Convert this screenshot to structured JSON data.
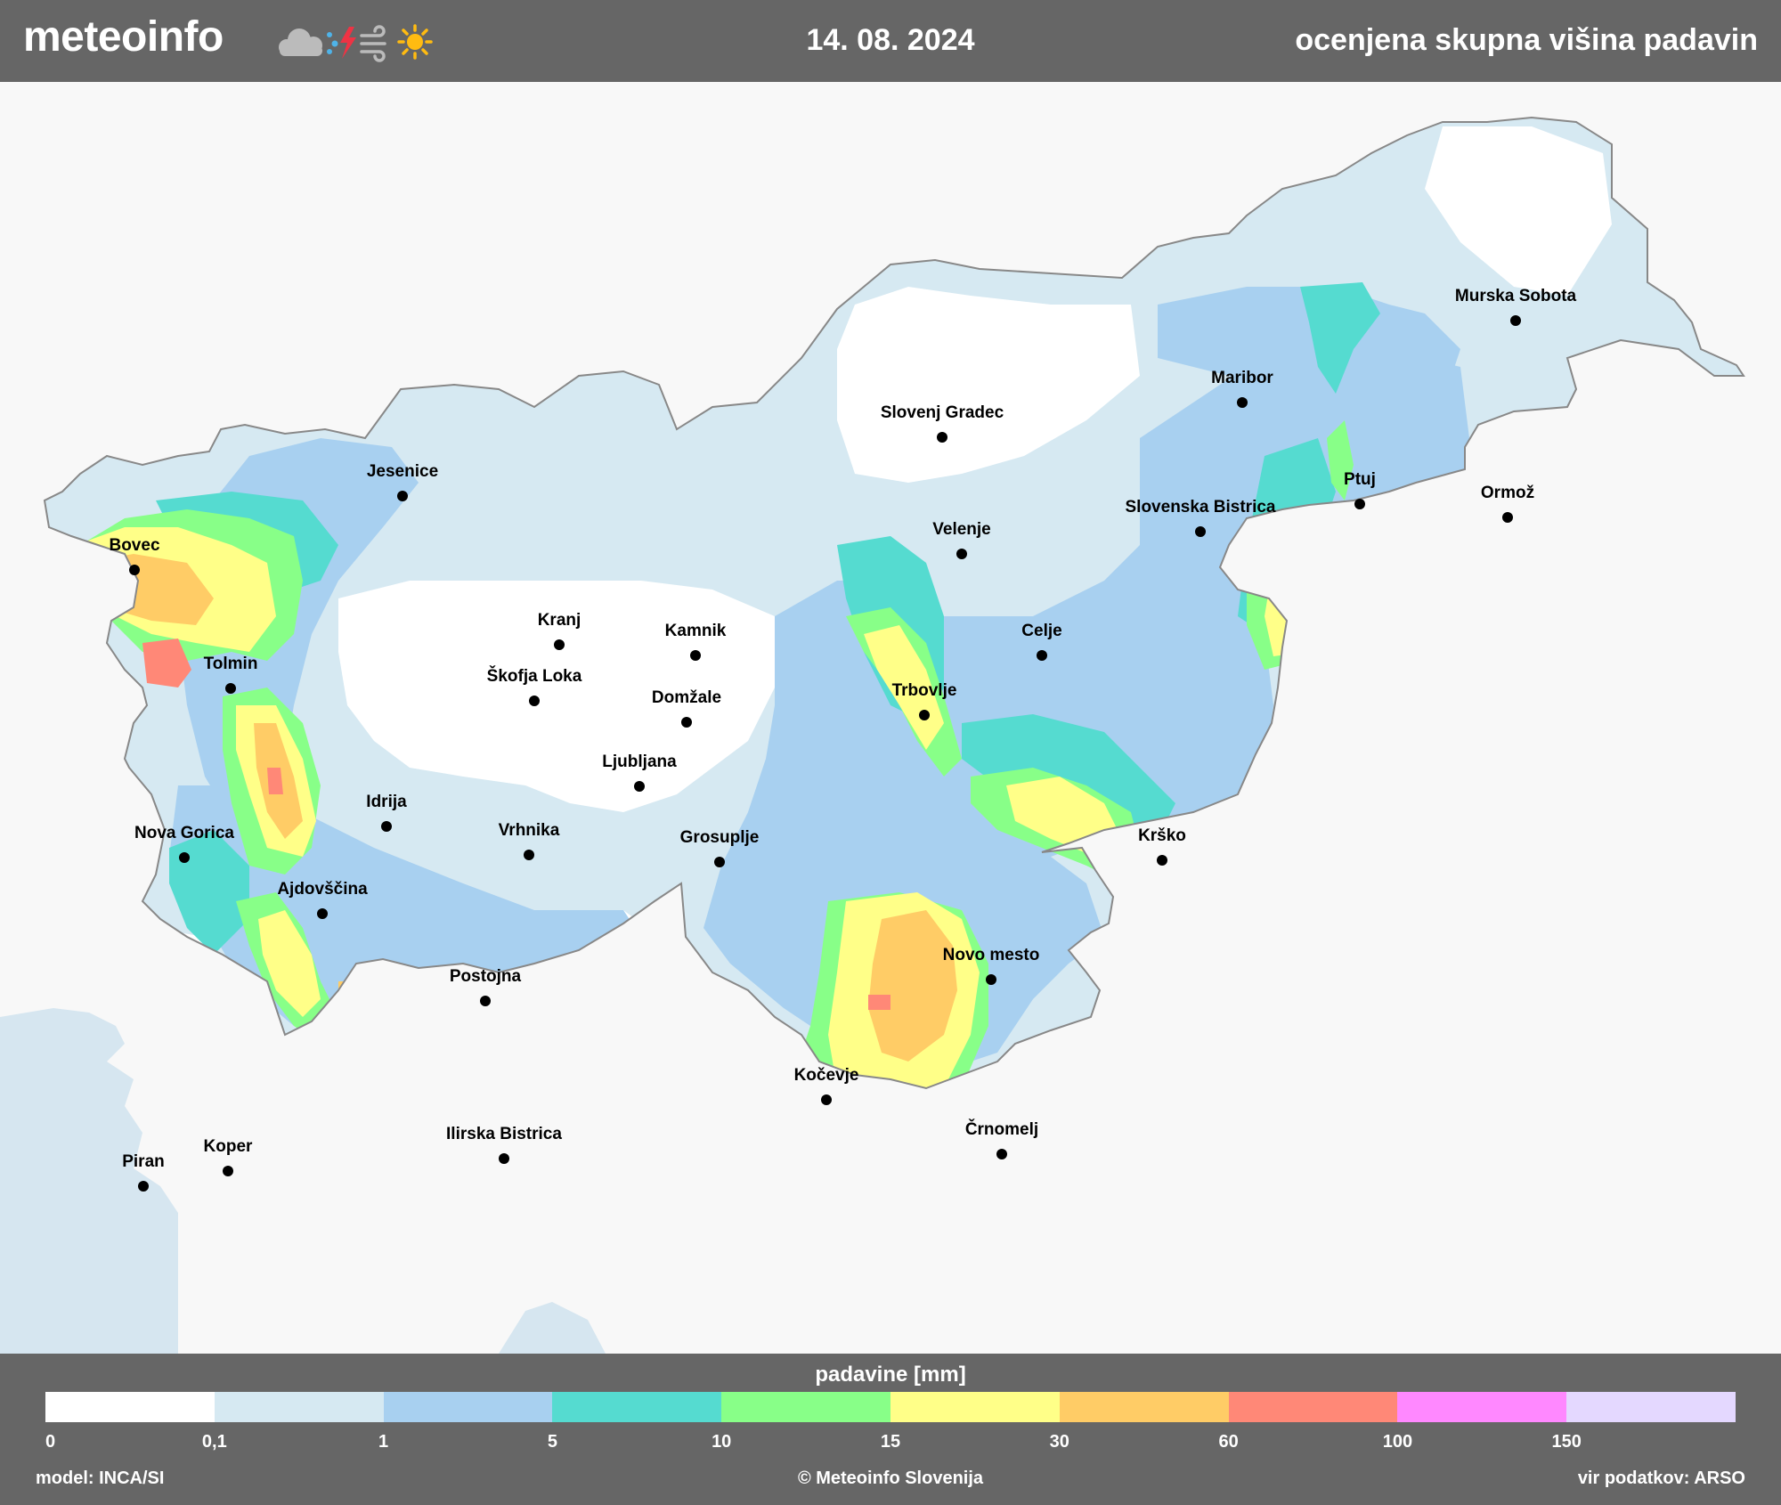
{
  "header": {
    "brand": "meteoinfo",
    "date": "14. 08. 2024",
    "map_title": "ocenjena skupna višina padavin",
    "brand_icons": [
      "cloud-icon",
      "rain-drops-icon",
      "lightning-icon",
      "wind-icon",
      "sun-icon"
    ]
  },
  "map": {
    "cities": [
      {
        "name": "Murska Sobota"
      },
      {
        "name": "Maribor"
      },
      {
        "name": "Slovenj Gradec"
      },
      {
        "name": "Ptuj"
      },
      {
        "name": "Ormož"
      },
      {
        "name": "Slovenska Bistrica"
      },
      {
        "name": "Velenje"
      },
      {
        "name": "Celje"
      },
      {
        "name": "Jesenice"
      },
      {
        "name": "Bovec"
      },
      {
        "name": "Tolmin"
      },
      {
        "name": "Kranj"
      },
      {
        "name": "Kamnik"
      },
      {
        "name": "Škofja Loka"
      },
      {
        "name": "Domžale"
      },
      {
        "name": "Trbovlje"
      },
      {
        "name": "Ljubljana"
      },
      {
        "name": "Idrija"
      },
      {
        "name": "Vrhnika"
      },
      {
        "name": "Grosuplje"
      },
      {
        "name": "Nova Gorica"
      },
      {
        "name": "Krško"
      },
      {
        "name": "Ajdovščina"
      },
      {
        "name": "Novo mesto"
      },
      {
        "name": "Postojna"
      },
      {
        "name": "Kočevje"
      },
      {
        "name": "Ilirska Bistrica"
      },
      {
        "name": "Črnomelj"
      },
      {
        "name": "Koper"
      },
      {
        "name": "Piran"
      }
    ]
  },
  "legend": {
    "title": "padavine [mm]",
    "colors": [
      "#ffffff",
      "#d6e9f2",
      "#a8d0f0",
      "#55dbd0",
      "#88ff88",
      "#ffff88",
      "#ffcc66",
      "#ff8877",
      "#ff88ff",
      "#e4d8ff"
    ],
    "ticks": [
      "0",
      "0,1",
      "1",
      "5",
      "10",
      "15",
      "30",
      "60",
      "100",
      "150"
    ]
  },
  "footer": {
    "model": "model: INCA/SI",
    "copyright": "© Meteoinfo Slovenija",
    "source": "vir podatkov: ARSO"
  }
}
